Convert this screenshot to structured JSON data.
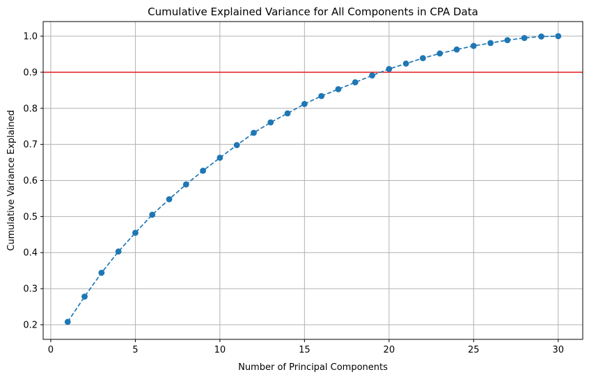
{
  "chart_data": {
    "type": "line",
    "title": "Cumulative Explained Variance for All Components in CPA Data",
    "xlabel": "Number of Principal Components",
    "ylabel": "Cumulative Variance Explained",
    "xlim": [
      -0.45,
      31.45
    ],
    "ylim": [
      0.1595,
      1.0405
    ],
    "xticks": [
      0,
      5,
      10,
      15,
      20,
      25,
      30
    ],
    "yticks": [
      0.2,
      0.3,
      0.4,
      0.5,
      0.6,
      0.7,
      0.8,
      0.9,
      1.0
    ],
    "xtick_labels": [
      "0",
      "5",
      "10",
      "15",
      "20",
      "25",
      "30"
    ],
    "ytick_labels": [
      "0.2",
      "0.3",
      "0.4",
      "0.5",
      "0.6",
      "0.7",
      "0.8",
      "0.9",
      "1.0"
    ],
    "grid": true,
    "series": [
      {
        "x": [
          1,
          2,
          3,
          4,
          5,
          6,
          7,
          8,
          9,
          10,
          11,
          12,
          13,
          14,
          15,
          16,
          17,
          18,
          19,
          20,
          21,
          22,
          23,
          24,
          25,
          26,
          27,
          28,
          29,
          30
        ],
        "values": [
          0.208,
          0.278,
          0.344,
          0.403,
          0.455,
          0.505,
          0.548,
          0.589,
          0.627,
          0.663,
          0.698,
          0.732,
          0.761,
          0.786,
          0.812,
          0.834,
          0.853,
          0.872,
          0.891,
          0.909,
          0.924,
          0.939,
          0.952,
          0.963,
          0.973,
          0.981,
          0.989,
          0.995,
          0.999,
          1.0
        ],
        "color": "#1f77b4",
        "line_style": "dashed",
        "marker": "circle"
      }
    ],
    "reference_line": {
      "y": 0.9,
      "color": "#e41a1c"
    },
    "grid_color": "#b0b0b0"
  }
}
